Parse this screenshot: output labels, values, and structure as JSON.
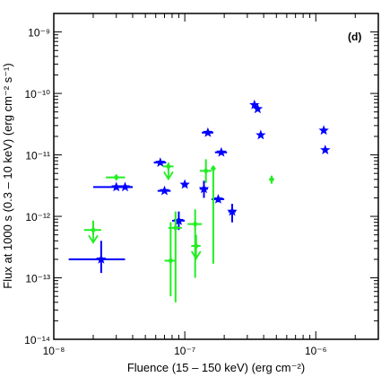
{
  "chart_data": {
    "type": "scatter",
    "title": "",
    "panel_label": "(d)",
    "xlabel": "Fluence (15 – 150 keV) (erg cm⁻²)",
    "ylabel": "Flux at 1000 s (0.3 – 10 keV) (erg cm⁻² s⁻¹)",
    "xscale": "log",
    "yscale": "log",
    "xlim": [
      1e-08,
      3e-06
    ],
    "ylim": [
      1e-14,
      2e-09
    ],
    "grid": false,
    "x_ticks": [
      {
        "value": 1e-08,
        "label": "10⁻⁸"
      },
      {
        "value": 1e-07,
        "label": "10⁻⁷"
      },
      {
        "value": 1e-06,
        "label": "10⁻⁶"
      }
    ],
    "y_ticks": [
      {
        "value": 1e-14,
        "label": "10⁻¹⁴"
      },
      {
        "value": 1e-13,
        "label": "10⁻¹³"
      },
      {
        "value": 1e-12,
        "label": "10⁻¹²"
      },
      {
        "value": 1e-11,
        "label": "10⁻¹¹"
      },
      {
        "value": 1e-10,
        "label": "10⁻¹⁰"
      },
      {
        "value": 1e-09,
        "label": "10⁻⁹"
      }
    ],
    "series": [
      {
        "marker": "star",
        "color": "#0000ff",
        "points": [
          {
            "x": 2.3e-08,
            "y": 2e-13,
            "xerr": [
              1.3e-08,
              3.5e-08
            ],
            "yerr": [
              1.2e-13,
              4e-13
            ]
          },
          {
            "x": 3e-08,
            "y": 3e-12,
            "xerr": [
              2e-08,
              4e-08
            ],
            "yerr": [
              2.7e-12,
              3.3e-12
            ]
          },
          {
            "x": 3.5e-08,
            "y": 3e-12,
            "xerr": [
              3e-08,
              4e-08
            ],
            "yerr": [
              2.8e-12,
              3.2e-12
            ]
          },
          {
            "x": 6.5e-08,
            "y": 7.5e-12,
            "xerr": [
              5.8e-08,
              7.2e-08
            ],
            "yerr": [
              7e-12,
              8e-12
            ]
          },
          {
            "x": 7e-08,
            "y": 2.6e-12,
            "xerr": [
              6.2e-08,
              7.8e-08
            ],
            "yerr": [
              2.4e-12,
              2.8e-12
            ]
          },
          {
            "x": 9e-08,
            "y": 8.5e-13,
            "xerr": [
              8e-08,
              1e-07
            ],
            "yerr": [
              6e-13,
              1.2e-12
            ]
          },
          {
            "x": 1e-07,
            "y": 3.3e-12,
            "xerr": [
              9.5e-08,
              1.05e-07
            ],
            "yerr": [
              3e-12,
              3.6e-12
            ]
          },
          {
            "x": 1.4e-07,
            "y": 2.8e-12,
            "xerr": [
              1.3e-07,
              1.5e-07
            ],
            "yerr": [
              2e-12,
              3.8e-12
            ]
          },
          {
            "x": 1.5e-07,
            "y": 2.3e-11,
            "xerr": [
              1.35e-07,
              1.65e-07
            ],
            "yerr": [
              2.1e-11,
              2.5e-11
            ]
          },
          {
            "x": 1.8e-07,
            "y": 1.9e-12,
            "xerr": [
              1.6e-07,
              2e-07
            ],
            "yerr": [
              1.7e-12,
              2.1e-12
            ]
          },
          {
            "x": 1.9e-07,
            "y": 1.1e-11,
            "xerr": [
              1.7e-07,
              2.1e-07
            ],
            "yerr": [
              1e-11,
              1.2e-11
            ]
          },
          {
            "x": 2.3e-07,
            "y": 1.2e-12,
            "xerr": [
              2.15e-07,
              2.45e-07
            ],
            "yerr": [
              8e-13,
              1.6e-12
            ]
          },
          {
            "x": 3.4e-07,
            "y": 6.5e-11,
            "xerr": [
              3.3e-07,
              3.5e-07
            ],
            "yerr": [
              6.2e-11,
              6.8e-11
            ]
          },
          {
            "x": 3.6e-07,
            "y": 5.6e-11,
            "xerr": [
              3.5e-07,
              3.7e-07
            ],
            "yerr": [
              5.3e-11,
              5.9e-11
            ]
          },
          {
            "x": 3.8e-07,
            "y": 2.1e-11,
            "xerr": [
              3.7e-07,
              3.9e-07
            ],
            "yerr": [
              2e-11,
              2.2e-11
            ]
          },
          {
            "x": 1.15e-06,
            "y": 2.5e-11,
            "xerr": [
              1.13e-06,
              1.17e-06
            ],
            "yerr": [
              2.3e-11,
              2.7e-11
            ]
          },
          {
            "x": 1.18e-06,
            "y": 1.2e-11,
            "xerr": [
              1.16e-06,
              1.2e-06
            ],
            "yerr": [
              1.1e-11,
              1.3e-11
            ]
          }
        ]
      },
      {
        "marker": "diamond",
        "color": "#22ee22",
        "points": [
          {
            "x": 2e-08,
            "y": 6e-13,
            "xerr": [
              1.7e-08,
              2.3e-08
            ],
            "yerr": [
              5e-13,
              8.5e-13
            ],
            "upper_limit": true
          },
          {
            "x": 3e-08,
            "y": 4.3e-12,
            "xerr": [
              2.5e-08,
              3.5e-08
            ],
            "yerr": [
              4e-12,
              4.6e-12
            ]
          },
          {
            "x": 7.5e-08,
            "y": 6.5e-12,
            "xerr": [
              6.8e-08,
              8.2e-08
            ],
            "yerr": [
              5.5e-12,
              7.5e-12
            ],
            "upper_limit": true
          },
          {
            "x": 7.8e-08,
            "y": 1.9e-13,
            "xerr": [
              7e-08,
              8.6e-08
            ],
            "yerr": [
              5e-14,
              8e-13
            ]
          },
          {
            "x": 8.5e-08,
            "y": 6.5e-13,
            "xerr": [
              7.5e-08,
              9.5e-08
            ],
            "yerr": [
              4e-14,
              1.2e-12
            ]
          },
          {
            "x": 1.2e-07,
            "y": 7.5e-13,
            "xerr": [
              1.05e-07,
              1.35e-07
            ],
            "yerr": [
              1e-13,
              1.3e-12
            ]
          },
          {
            "x": 1.22e-07,
            "y": 3.3e-13,
            "xerr": [
              1.12e-07,
              1.32e-07
            ],
            "yerr": [
              3.1e-13,
              5e-13
            ],
            "upper_limit": true
          },
          {
            "x": 1.45e-07,
            "y": 5.5e-12,
            "xerr": [
              1.3e-07,
              1.6e-07
            ],
            "yerr": [
              3.5e-12,
              8.5e-12
            ]
          },
          {
            "x": 1.65e-07,
            "y": 6e-12,
            "xerr": [
              1.6e-07,
              1.7e-07
            ],
            "yerr": [
              1.7e-13,
              6.5e-12
            ]
          },
          {
            "x": 4.6e-07,
            "y": 4e-12,
            "xerr": [
              4.4e-07,
              4.8e-07
            ],
            "yerr": [
              3.4e-12,
              4.6e-12
            ]
          }
        ]
      }
    ]
  }
}
